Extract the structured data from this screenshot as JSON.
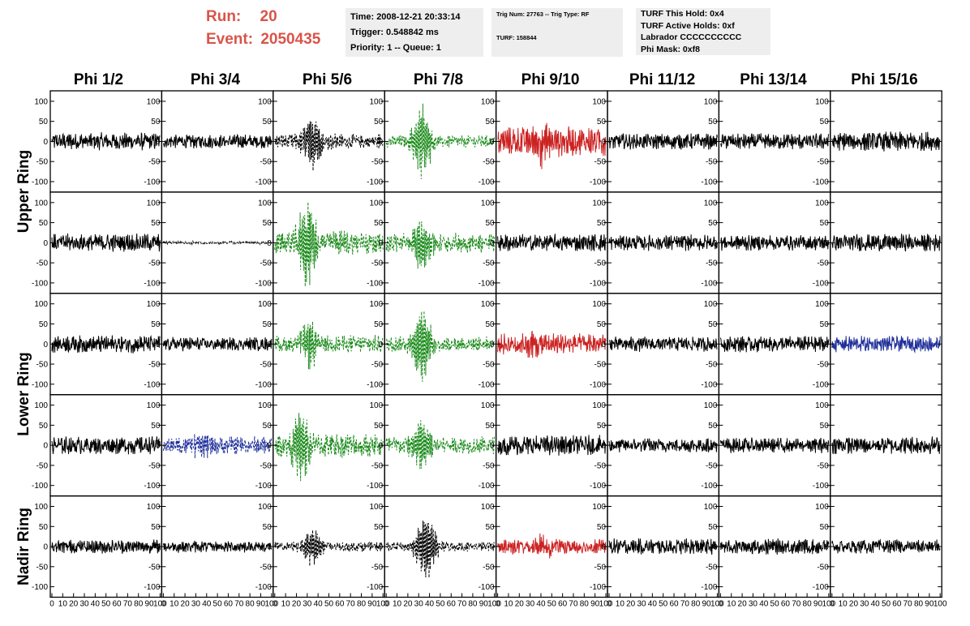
{
  "header": {
    "run_label": "Run:",
    "run_value": "20",
    "event_label": "Event:",
    "event_value": "2050435",
    "box1": [
      "Time: 2008-12-21 20:33:14",
      "Trigger: 0.548842 ms",
      "Priority: 1 -- Queue: 1"
    ],
    "box2_top": "Trig Num: 27763 -- Trig Type: RF",
    "box2_bottom": "TURF: 158844",
    "box3": [
      "TURF This Hold: 0x4",
      "TURF Active Holds: 0xf",
      "Labrador CCCCCCCCCC",
      "Phi Mask: 0xf8"
    ]
  },
  "columns": [
    "Phi 1/2",
    "Phi 3/4",
    "Phi 5/6",
    "Phi 7/8",
    "Phi 9/10",
    "Phi 11/12",
    "Phi 13/14",
    "Phi 15/16"
  ],
  "rows": [
    "Upper Ring",
    "Lower Ring",
    "Nadir Ring"
  ],
  "colors": {
    "run_text": "#d9544a",
    "black": "#000000",
    "green": "#1a8a1a",
    "red": "#cc2222",
    "blue": "#1f2f9a",
    "info_bg": "#eeeeee"
  },
  "chart_data": {
    "type": "line",
    "description_units": "waveform voltage vs sample index",
    "xlim": [
      0,
      100
    ],
    "ylim": [
      -120,
      120
    ],
    "x_ticks": [
      0,
      10,
      20,
      30,
      40,
      50,
      60,
      70,
      80,
      90,
      100
    ],
    "y_ticks": [
      -100,
      -50,
      0,
      50,
      100
    ],
    "panels": [
      [
        {
          "color": "black",
          "style": "solid",
          "amp": 18,
          "burst": null
        },
        {
          "color": "black",
          "style": "solid",
          "amp": 14,
          "burst": null
        },
        {
          "color": "black",
          "style": "dashed",
          "amp": 16,
          "burst": {
            "center": 35,
            "amp": 70
          }
        },
        {
          "color": "green",
          "style": "dashed",
          "amp": 12,
          "burst": {
            "center": 33,
            "amp": 95
          }
        },
        {
          "color": "red",
          "style": "solid",
          "amp": 30,
          "burst": {
            "center": 40,
            "amp": 40
          }
        },
        {
          "color": "black",
          "style": "solid",
          "amp": 16,
          "burst": null
        },
        {
          "color": "black",
          "style": "solid",
          "amp": 16,
          "burst": null
        },
        {
          "color": "black",
          "style": "solid",
          "amp": 20,
          "burst": null
        }
      ],
      [
        {
          "color": "black",
          "style": "solid",
          "amp": 18,
          "burst": null
        },
        {
          "color": "black",
          "style": "dashed",
          "amp": 3,
          "burst": null
        },
        {
          "color": "green",
          "style": "dashed",
          "amp": 25,
          "burst": {
            "center": 30,
            "amp": 110
          }
        },
        {
          "color": "green",
          "style": "dashed",
          "amp": 20,
          "burst": {
            "center": 33,
            "amp": 65
          }
        },
        {
          "color": "black",
          "style": "solid",
          "amp": 18,
          "burst": null
        },
        {
          "color": "black",
          "style": "solid",
          "amp": 16,
          "burst": null
        },
        {
          "color": "black",
          "style": "solid",
          "amp": 16,
          "burst": null
        },
        {
          "color": "black",
          "style": "solid",
          "amp": 18,
          "burst": null
        }
      ],
      [
        {
          "color": "black",
          "style": "solid",
          "amp": 18,
          "burst": null
        },
        {
          "color": "black",
          "style": "solid",
          "amp": 14,
          "burst": null
        },
        {
          "color": "green",
          "style": "dashed",
          "amp": 18,
          "burst": {
            "center": 32,
            "amp": 55
          }
        },
        {
          "color": "green",
          "style": "dashed",
          "amp": 15,
          "burst": {
            "center": 33,
            "amp": 105
          }
        },
        {
          "color": "red",
          "style": "solid",
          "amp": 22,
          "burst": {
            "center": 35,
            "amp": 30
          }
        },
        {
          "color": "black",
          "style": "solid",
          "amp": 15,
          "burst": null
        },
        {
          "color": "black",
          "style": "solid",
          "amp": 16,
          "burst": null
        },
        {
          "color": "blue",
          "style": "solid",
          "amp": 16,
          "burst": null
        }
      ],
      [
        {
          "color": "black",
          "style": "solid",
          "amp": 18,
          "burst": null
        },
        {
          "color": "blue",
          "style": "dashed",
          "amp": 18,
          "burst": {
            "center": 35,
            "amp": 30
          }
        },
        {
          "color": "green",
          "style": "dashed",
          "amp": 25,
          "burst": {
            "center": 25,
            "amp": 80
          }
        },
        {
          "color": "green",
          "style": "dashed",
          "amp": 18,
          "burst": {
            "center": 33,
            "amp": 75
          }
        },
        {
          "color": "black",
          "style": "solid",
          "amp": 20,
          "burst": null
        },
        {
          "color": "black",
          "style": "solid",
          "amp": 14,
          "burst": null
        },
        {
          "color": "black",
          "style": "solid",
          "amp": 15,
          "burst": null
        },
        {
          "color": "black",
          "style": "solid",
          "amp": 18,
          "burst": null
        }
      ],
      [
        {
          "color": "black",
          "style": "solid",
          "amp": 14,
          "burst": null
        },
        {
          "color": "black",
          "style": "solid",
          "amp": 12,
          "burst": null
        },
        {
          "color": "black",
          "style": "dashed",
          "amp": 10,
          "burst": {
            "center": 35,
            "amp": 50
          }
        },
        {
          "color": "black",
          "style": "dashed",
          "amp": 10,
          "burst": {
            "center": 37,
            "amp": 100
          }
        },
        {
          "color": "red",
          "style": "solid",
          "amp": 16,
          "burst": {
            "center": 40,
            "amp": 25
          }
        },
        {
          "color": "black",
          "style": "solid",
          "amp": 16,
          "burst": null
        },
        {
          "color": "black",
          "style": "solid",
          "amp": 16,
          "burst": null
        },
        {
          "color": "black",
          "style": "solid",
          "amp": 14,
          "burst": null
        }
      ]
    ]
  }
}
